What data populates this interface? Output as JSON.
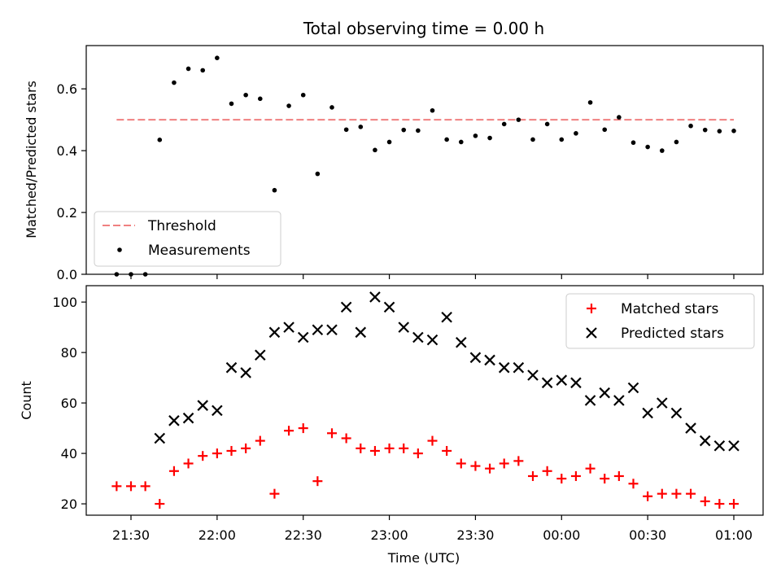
{
  "chart_data": [
    {
      "type": "scatter",
      "title": "Total observing time = 0.00 h",
      "xlabel": "",
      "ylabel": "Matched/Predicted stars",
      "ylim": [
        0,
        0.74
      ],
      "yticks": [
        "0.0",
        "0.2",
        "0.4",
        "0.6"
      ],
      "legend_position": "lower-left",
      "threshold": {
        "name": "Threshold",
        "value": 0.5,
        "color": "#f08080"
      },
      "series": [
        {
          "name": "Measurements",
          "color": "#000000",
          "x": [
            "21:25",
            "21:30",
            "21:35",
            "21:40",
            "21:45",
            "21:50",
            "21:55",
            "22:00",
            "22:05",
            "22:10",
            "22:15",
            "22:20",
            "22:25",
            "22:30",
            "22:35",
            "22:40",
            "22:45",
            "22:50",
            "22:55",
            "23:00",
            "23:05",
            "23:10",
            "23:15",
            "23:20",
            "23:25",
            "23:30",
            "23:35",
            "23:40",
            "23:45",
            "23:50",
            "23:55",
            "00:00",
            "00:05",
            "00:10",
            "00:15",
            "00:20",
            "00:25",
            "00:30",
            "00:35",
            "00:40",
            "00:45",
            "00:50",
            "00:55",
            "01:00"
          ],
          "y": [
            0.0,
            0.0,
            0.0,
            0.435,
            0.62,
            0.665,
            0.66,
            0.7,
            0.552,
            0.58,
            0.568,
            0.272,
            0.545,
            0.58,
            0.325,
            0.54,
            0.468,
            0.477,
            0.402,
            0.428,
            0.467,
            0.465,
            0.53,
            0.436,
            0.428,
            0.448,
            0.441,
            0.486,
            0.5,
            0.436,
            0.486,
            0.436,
            0.456,
            0.556,
            0.468,
            0.508,
            0.426,
            0.412,
            0.4,
            0.428,
            0.48,
            0.467,
            0.463,
            0.464
          ]
        }
      ]
    },
    {
      "type": "scatter",
      "title": "",
      "xlabel": "Time (UTC)",
      "ylabel": "Count",
      "ylim": [
        15.5,
        106.5
      ],
      "yticks": [
        "20",
        "40",
        "60",
        "80",
        "100"
      ],
      "xticks": [
        "21:30",
        "22:00",
        "22:30",
        "23:00",
        "23:30",
        "00:00",
        "00:30",
        "01:00"
      ],
      "legend_position": "upper-right",
      "series": [
        {
          "name": "Matched stars",
          "color": "#ff0000",
          "marker": "+",
          "x": [
            "21:25",
            "21:30",
            "21:35",
            "21:40",
            "21:45",
            "21:50",
            "21:55",
            "22:00",
            "22:05",
            "22:10",
            "22:15",
            "22:20",
            "22:25",
            "22:30",
            "22:35",
            "22:40",
            "22:45",
            "22:50",
            "22:55",
            "23:00",
            "23:05",
            "23:10",
            "23:15",
            "23:20",
            "23:25",
            "23:30",
            "23:35",
            "23:40",
            "23:45",
            "23:50",
            "23:55",
            "00:00",
            "00:05",
            "00:10",
            "00:15",
            "00:20",
            "00:25",
            "00:30",
            "00:35",
            "00:40",
            "00:45",
            "00:50",
            "00:55",
            "01:00"
          ],
          "y": [
            27,
            27,
            27,
            20,
            33,
            36,
            39,
            40,
            41,
            42,
            45,
            24,
            49,
            50,
            29,
            48,
            46,
            42,
            41,
            42,
            42,
            40,
            45,
            41,
            36,
            35,
            34,
            36,
            37,
            31,
            33,
            30,
            31,
            34,
            30,
            31,
            28,
            23,
            24,
            24,
            24,
            21,
            20,
            20
          ]
        },
        {
          "name": "Predicted stars",
          "color": "#000000",
          "marker": "x",
          "x": [
            "21:40",
            "21:45",
            "21:50",
            "21:55",
            "22:00",
            "22:05",
            "22:10",
            "22:15",
            "22:20",
            "22:25",
            "22:30",
            "22:35",
            "22:40",
            "22:45",
            "22:50",
            "22:55",
            "23:00",
            "23:05",
            "23:10",
            "23:15",
            "23:20",
            "23:25",
            "23:30",
            "23:35",
            "23:40",
            "23:45",
            "23:50",
            "23:55",
            "00:00",
            "00:05",
            "00:10",
            "00:15",
            "00:20",
            "00:25",
            "00:30",
            "00:35",
            "00:40",
            "00:45",
            "00:50",
            "00:55",
            "01:00"
          ],
          "y": [
            46,
            53,
            54,
            59,
            57,
            74,
            72,
            79,
            88,
            90,
            86,
            89,
            89,
            98,
            88,
            102,
            98,
            90,
            86,
            85,
            94,
            84,
            78,
            77,
            74,
            74,
            71,
            68,
            69,
            68,
            61,
            64,
            61,
            66,
            56,
            60,
            56,
            50,
            45,
            43,
            43
          ]
        }
      ]
    }
  ]
}
